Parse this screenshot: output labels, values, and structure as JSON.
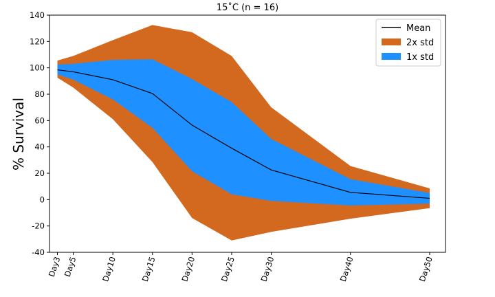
{
  "chart_data": {
    "type": "area",
    "title": "15˚C (n = 16)",
    "xlabel": "",
    "ylabel": "% Survival",
    "ylim": [
      -40,
      140
    ],
    "yticks": [
      -40,
      -20,
      0,
      20,
      40,
      60,
      80,
      100,
      120,
      140
    ],
    "x": [
      3,
      5,
      10,
      15,
      20,
      25,
      30,
      40,
      50
    ],
    "categories": [
      "Day3",
      "Day5",
      "Day10",
      "Day15",
      "Day20",
      "Day25",
      "Day30",
      "Day40",
      "Day50"
    ],
    "grid": false,
    "legend_position": "top-right",
    "series": [
      {
        "name": "Mean",
        "kind": "line",
        "color": "#000000",
        "values": [
          98.5,
          97.0,
          91.0,
          80.5,
          56.5,
          39.0,
          22.5,
          5.5,
          1.0
        ]
      },
      {
        "name": "2x std",
        "kind": "band",
        "color": "#D2691E",
        "upper": [
          105.5,
          109.0,
          121.0,
          132.5,
          127.0,
          109.0,
          70.0,
          25.5,
          8.5
        ],
        "lower": [
          92.5,
          85.0,
          61.0,
          28.5,
          -14.0,
          -31.0,
          -24.5,
          -14.5,
          -6.5
        ]
      },
      {
        "name": "1x std",
        "kind": "band",
        "color": "#1E90FF",
        "upper": [
          102.5,
          103.0,
          106.0,
          106.5,
          91.5,
          74.0,
          46.0,
          15.5,
          5.0
        ],
        "lower": [
          95.0,
          91.0,
          76.0,
          54.5,
          21.5,
          4.0,
          -1.0,
          -4.5,
          -3.0
        ]
      }
    ]
  }
}
